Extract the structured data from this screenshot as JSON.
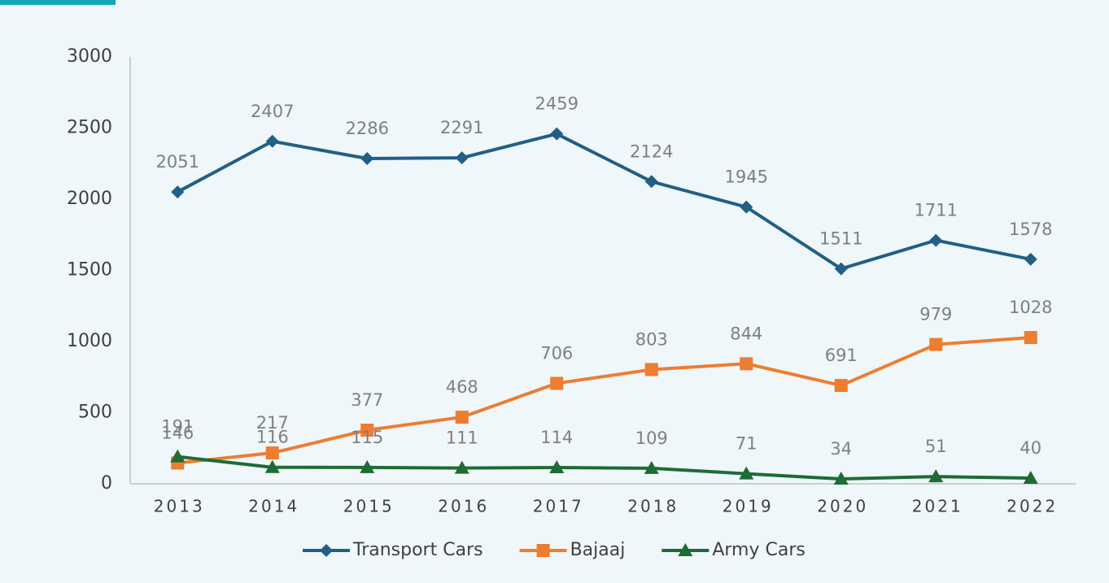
{
  "chart_data": {
    "type": "line",
    "categories": [
      "2013",
      "2014",
      "2015",
      "2016",
      "2017",
      "2018",
      "2019",
      "2020",
      "2021",
      "2022"
    ],
    "series": [
      {
        "name": "Transport Cars",
        "color": "#215f85",
        "marker": "diamond",
        "values": [
          2051,
          2407,
          2286,
          2291,
          2459,
          2124,
          1945,
          1511,
          1711,
          1578
        ]
      },
      {
        "name": "Bajaaj",
        "color": "#ed7d31",
        "marker": "square",
        "values": [
          146,
          217,
          377,
          468,
          706,
          803,
          844,
          691,
          979,
          1028
        ]
      },
      {
        "name": "Army Cars",
        "color": "#1e6b35",
        "marker": "triangle",
        "values": [
          191,
          116,
          115,
          111,
          114,
          109,
          71,
          34,
          51,
          40
        ]
      }
    ],
    "ylim": [
      0,
      3000
    ],
    "yticks": [
      0,
      500,
      1000,
      1500,
      2000,
      2500,
      3000
    ],
    "grid": false,
    "legend": "bottom"
  }
}
